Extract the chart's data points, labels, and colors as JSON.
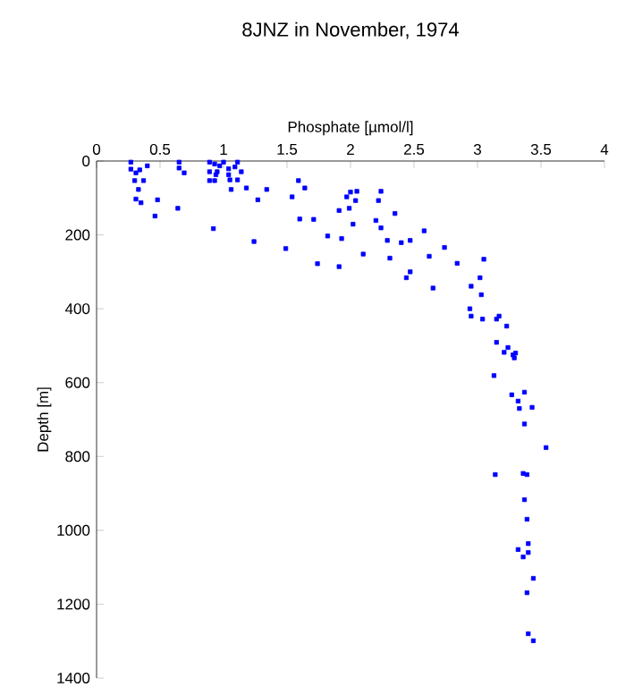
{
  "chart_data": {
    "type": "scatter",
    "title": "8JNZ in November, 1974",
    "xlabel": "Phosphate [µmol/l]",
    "ylabel": "Depth [m]",
    "xlim": [
      0,
      4
    ],
    "xticks": [
      0,
      0.5,
      1,
      1.5,
      2,
      2.5,
      3,
      3.5,
      4
    ],
    "ylim": [
      1400,
      0
    ],
    "yticks": [
      0,
      200,
      400,
      600,
      800,
      1000,
      1200,
      1400
    ],
    "marker": "square",
    "series": [
      {
        "color": "#0000ff",
        "x": [
          0.27,
          0.27,
          0.31,
          0.34,
          0.4,
          0.3,
          0.37,
          0.33,
          0.31,
          0.35,
          0.48,
          0.46,
          0.65,
          0.65,
          0.69,
          0.64,
          0.89,
          0.93,
          0.97,
          0.89,
          0.95,
          1.0,
          1.04,
          0.94,
          0.89,
          0.93,
          1.04,
          1.11,
          1.09,
          1.14,
          1.11,
          1.05,
          1.06,
          1.18,
          1.34,
          1.27,
          0.92,
          1.24,
          1.49,
          1.54,
          1.59,
          1.64,
          1.6,
          1.71,
          1.82,
          1.74,
          1.91,
          1.93,
          1.91,
          1.97,
          1.99,
          2.02,
          2.0,
          2.05,
          2.04,
          2.24,
          2.22,
          2.35,
          2.2,
          2.24,
          2.29,
          2.4,
          2.47,
          2.58,
          2.1,
          2.31,
          2.62,
          2.74,
          2.47,
          2.44,
          2.65,
          2.84,
          3.05,
          3.02,
          2.95,
          3.03,
          2.94,
          2.95,
          3.04,
          3.15,
          3.17,
          3.23,
          3.15,
          3.24,
          3.21,
          3.28,
          3.3,
          3.13,
          3.37,
          3.29,
          3.27,
          3.32,
          3.33,
          3.43,
          3.37,
          3.54,
          3.14,
          3.36,
          3.39,
          3.37,
          3.39,
          3.4,
          3.32,
          3.4,
          3.36,
          3.44,
          3.39,
          3.4,
          3.44
        ],
        "values": [
          3,
          22,
          32,
          24,
          13,
          53,
          53,
          77,
          103,
          113,
          105,
          149,
          3,
          19,
          32,
          128,
          3,
          8,
          13,
          29,
          29,
          3,
          21,
          37,
          53,
          53,
          37,
          3,
          16,
          29,
          51,
          51,
          77,
          73,
          77,
          105,
          183,
          218,
          237,
          97,
          53,
          73,
          157,
          158,
          203,
          278,
          286,
          210,
          134,
          97,
          128,
          171,
          84,
          82,
          107,
          82,
          107,
          142,
          161,
          181,
          215,
          221,
          215,
          189,
          252,
          263,
          258,
          234,
          300,
          316,
          344,
          277,
          266,
          316,
          339,
          362,
          400,
          420,
          428,
          428,
          420,
          447,
          491,
          505,
          518,
          525,
          520,
          581,
          626,
          533,
          633,
          650,
          670,
          667,
          712,
          776,
          849,
          846,
          849,
          917,
          970,
          1036,
          1052,
          1060,
          1072,
          1130,
          1169,
          1280,
          1299
        ]
      }
    ]
  }
}
